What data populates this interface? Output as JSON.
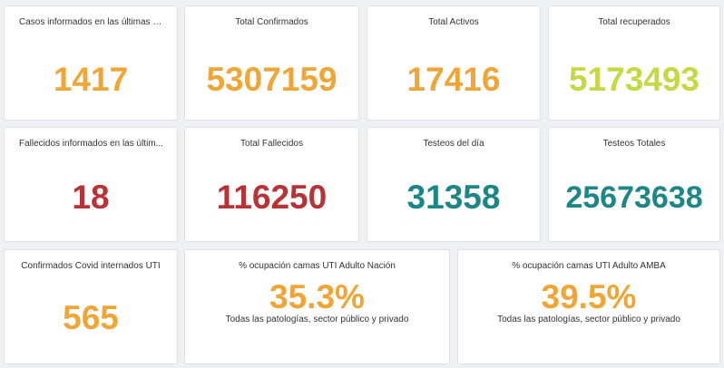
{
  "colors": {
    "orange": "#f0a637",
    "yellow_green": "#c7d845",
    "red": "#b83236",
    "teal": "#1d8686"
  },
  "row1": {
    "cases_recent": {
      "title": "Casos informados en las últimas 2...",
      "value": "1417"
    },
    "total_confirmed": {
      "title": "Total Confirmados",
      "value": "5307159"
    },
    "total_active": {
      "title": "Total Activos",
      "value": "17416"
    },
    "total_recovered": {
      "title": "Total recuperados",
      "value": "5173493"
    }
  },
  "row2": {
    "deaths_recent": {
      "title": "Fallecidos informados en las últim...",
      "value": "18"
    },
    "total_deaths": {
      "title": "Total Fallecidos",
      "value": "116250"
    },
    "tests_today": {
      "title": "Testeos del día",
      "value": "31358"
    },
    "tests_total": {
      "title": "Testeos Totales",
      "value": "25673638"
    }
  },
  "row3": {
    "icu_confirmed": {
      "title": "Confirmados Covid internados UTI",
      "value": "565"
    },
    "icu_nation": {
      "title": "% ocupación camas UTI Adulto Nación",
      "value": "35.3%",
      "subtitle": "Todas las patologías, sector público y privado"
    },
    "icu_amba": {
      "title": "% ocupación camas UTI Adulto AMBA",
      "value": "39.5%",
      "subtitle": "Todas las patologías, sector público y privado"
    }
  }
}
